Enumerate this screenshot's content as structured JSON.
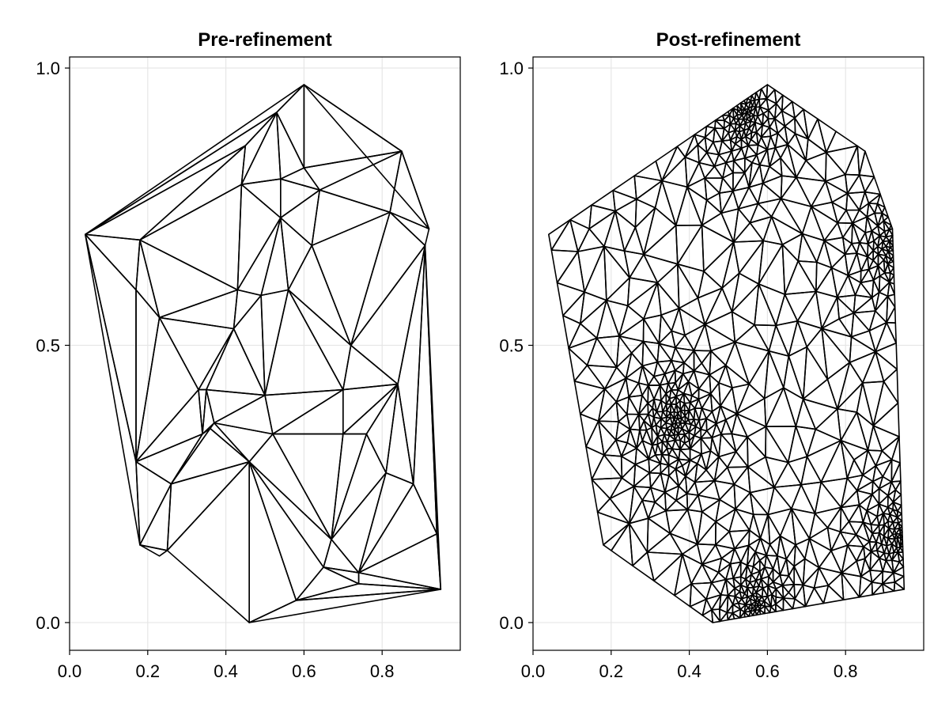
{
  "chart_data": [
    {
      "type": "triangulation",
      "title": "Pre-refinement",
      "xlim": [
        0.0,
        1.0
      ],
      "ylim": [
        -0.05,
        1.02
      ],
      "xticks": [
        0.0,
        0.2,
        0.4,
        0.6,
        0.8
      ],
      "xtick_labels": [
        "0.0",
        "0.2",
        "0.4",
        "0.6",
        "0.8"
      ],
      "yticks": [
        0.0,
        0.5,
        1.0
      ],
      "ytick_labels": [
        "0.0",
        "0.5",
        "1.0"
      ],
      "grid": true,
      "points": [
        [
          0.6,
          0.97
        ],
        [
          0.53,
          0.92
        ],
        [
          0.45,
          0.86
        ],
        [
          0.85,
          0.85
        ],
        [
          0.6,
          0.82
        ],
        [
          0.54,
          0.8
        ],
        [
          0.44,
          0.79
        ],
        [
          0.64,
          0.78
        ],
        [
          0.04,
          0.7
        ],
        [
          0.92,
          0.71
        ],
        [
          0.18,
          0.69
        ],
        [
          0.82,
          0.74
        ],
        [
          0.54,
          0.73
        ],
        [
          0.91,
          0.68
        ],
        [
          0.62,
          0.68
        ],
        [
          0.43,
          0.6
        ],
        [
          0.56,
          0.6
        ],
        [
          0.49,
          0.59
        ],
        [
          0.23,
          0.55
        ],
        [
          0.17,
          0.6
        ],
        [
          0.42,
          0.53
        ],
        [
          0.72,
          0.5
        ],
        [
          0.33,
          0.42
        ],
        [
          0.5,
          0.41
        ],
        [
          0.7,
          0.42
        ],
        [
          0.84,
          0.43
        ],
        [
          0.35,
          0.42
        ],
        [
          0.36,
          0.35
        ],
        [
          0.37,
          0.36
        ],
        [
          0.52,
          0.34
        ],
        [
          0.7,
          0.34
        ],
        [
          0.76,
          0.34
        ],
        [
          0.34,
          0.34
        ],
        [
          0.17,
          0.29
        ],
        [
          0.26,
          0.25
        ],
        [
          0.46,
          0.29
        ],
        [
          0.81,
          0.27
        ],
        [
          0.88,
          0.25
        ],
        [
          0.94,
          0.16
        ],
        [
          0.18,
          0.14
        ],
        [
          0.25,
          0.13
        ],
        [
          0.23,
          0.12
        ],
        [
          0.67,
          0.15
        ],
        [
          0.65,
          0.1
        ],
        [
          0.74,
          0.09
        ],
        [
          0.74,
          0.07
        ],
        [
          0.58,
          0.04
        ],
        [
          0.46,
          0.0
        ],
        [
          0.95,
          0.06
        ]
      ],
      "triangles": [
        [
          8,
          2,
          10
        ],
        [
          8,
          1,
          2
        ],
        [
          8,
          0,
          1
        ],
        [
          0,
          1,
          4
        ],
        [
          0,
          4,
          3
        ],
        [
          0,
          3,
          9
        ],
        [
          1,
          2,
          6
        ],
        [
          1,
          6,
          5
        ],
        [
          1,
          5,
          4
        ],
        [
          4,
          5,
          7
        ],
        [
          4,
          7,
          3
        ],
        [
          3,
          7,
          11
        ],
        [
          3,
          11,
          9
        ],
        [
          2,
          10,
          6
        ],
        [
          9,
          11,
          13
        ],
        [
          7,
          11,
          14
        ],
        [
          5,
          7,
          12
        ],
        [
          6,
          5,
          12
        ],
        [
          7,
          12,
          14
        ],
        [
          10,
          6,
          15
        ],
        [
          6,
          12,
          15
        ],
        [
          12,
          15,
          17
        ],
        [
          12,
          16,
          17
        ],
        [
          12,
          14,
          16
        ],
        [
          14,
          16,
          21
        ],
        [
          11,
          14,
          21
        ],
        [
          11,
          13,
          21
        ],
        [
          10,
          15,
          18
        ],
        [
          8,
          10,
          19
        ],
        [
          10,
          19,
          18
        ],
        [
          15,
          17,
          20
        ],
        [
          15,
          20,
          18
        ],
        [
          16,
          17,
          23
        ],
        [
          17,
          20,
          23
        ],
        [
          16,
          21,
          24
        ],
        [
          16,
          23,
          24
        ],
        [
          21,
          24,
          25
        ],
        [
          13,
          21,
          25
        ],
        [
          18,
          20,
          22
        ],
        [
          20,
          22,
          26
        ],
        [
          20,
          23,
          26
        ],
        [
          23,
          24,
          29
        ],
        [
          24,
          29,
          30
        ],
        [
          24,
          30,
          25
        ],
        [
          25,
          30,
          31
        ],
        [
          25,
          31,
          36
        ],
        [
          25,
          36,
          37
        ],
        [
          13,
          25,
          37
        ],
        [
          13,
          37,
          38
        ],
        [
          19,
          18,
          33
        ],
        [
          18,
          22,
          33
        ],
        [
          22,
          26,
          32
        ],
        [
          22,
          32,
          33
        ],
        [
          26,
          28,
          32
        ],
        [
          26,
          23,
          28
        ],
        [
          23,
          28,
          29
        ],
        [
          28,
          29,
          35
        ],
        [
          27,
          28,
          35
        ],
        [
          32,
          27,
          34
        ],
        [
          27,
          34,
          35
        ],
        [
          33,
          32,
          34
        ],
        [
          8,
          19,
          33
        ],
        [
          8,
          33,
          39
        ],
        [
          33,
          34,
          39
        ],
        [
          34,
          39,
          40
        ],
        [
          34,
          35,
          40
        ],
        [
          39,
          40,
          41
        ],
        [
          35,
          40,
          47
        ],
        [
          35,
          29,
          42
        ],
        [
          29,
          30,
          42
        ],
        [
          30,
          31,
          42
        ],
        [
          31,
          36,
          42
        ],
        [
          36,
          37,
          44
        ],
        [
          36,
          42,
          44
        ],
        [
          37,
          38,
          44
        ],
        [
          38,
          44,
          48
        ],
        [
          35,
          42,
          43
        ],
        [
          35,
          43,
          46
        ],
        [
          35,
          46,
          47
        ],
        [
          42,
          43,
          44
        ],
        [
          43,
          44,
          45
        ],
        [
          43,
          45,
          46
        ],
        [
          44,
          45,
          48
        ],
        [
          45,
          46,
          48
        ],
        [
          46,
          47,
          48
        ],
        [
          13,
          38,
          48
        ]
      ]
    },
    {
      "type": "triangulation",
      "title": "Post-refinement",
      "xlim": [
        0.0,
        1.0
      ],
      "ylim": [
        -0.05,
        1.02
      ],
      "xticks": [
        0.0,
        0.2,
        0.4,
        0.6,
        0.8
      ],
      "xtick_labels": [
        "0.0",
        "0.2",
        "0.4",
        "0.6",
        "0.8"
      ],
      "yticks": [
        0.0,
        0.5,
        1.0
      ],
      "ytick_labels": [
        "0.0",
        "0.5",
        "1.0"
      ],
      "grid": true,
      "boundary": [
        [
          0.04,
          0.7
        ],
        [
          0.6,
          0.97
        ],
        [
          0.85,
          0.85
        ],
        [
          0.92,
          0.71
        ],
        [
          0.95,
          0.06
        ],
        [
          0.46,
          0.0
        ],
        [
          0.18,
          0.14
        ]
      ],
      "refinement_density_centers": [
        [
          0.36,
          0.36
        ],
        [
          0.54,
          0.92
        ],
        [
          0.93,
          0.68
        ],
        [
          0.94,
          0.16
        ],
        [
          0.57,
          0.03
        ]
      ]
    }
  ]
}
